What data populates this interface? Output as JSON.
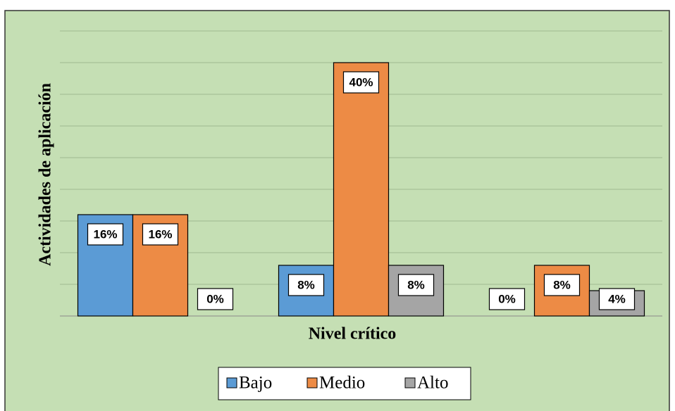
{
  "chart_data": {
    "type": "bar",
    "xlabel": "Nivel crítico",
    "ylabel": "Actividades de aplicación",
    "categories": [
      null,
      null,
      null
    ],
    "series": [
      {
        "name": "Bajo",
        "color": "#5b9bd5",
        "values": [
          16,
          8,
          0
        ],
        "value_labels": [
          "16%",
          "8%",
          "0%"
        ]
      },
      {
        "name": "Medio",
        "color": "#ed8b45",
        "values": [
          16,
          40,
          8
        ],
        "value_labels": [
          "16%",
          "40%",
          "8%"
        ]
      },
      {
        "name": "Alto",
        "color": "#a5a5a5",
        "values": [
          0,
          8,
          4
        ],
        "value_labels": [
          "0%",
          "8%",
          "4%"
        ]
      }
    ],
    "ylim": [
      0,
      45
    ],
    "yticks": [
      0,
      5,
      10,
      15,
      20,
      25,
      30,
      35,
      40,
      45
    ],
    "grid": true
  }
}
